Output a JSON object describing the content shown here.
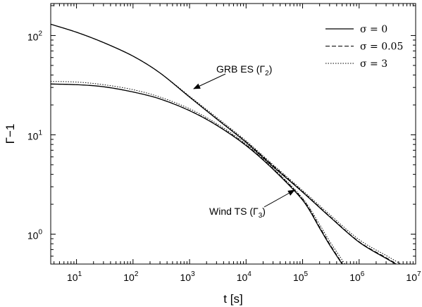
{
  "chart_data": {
    "type": "line",
    "xlabel": "t [s]",
    "ylabel": "Γ−1",
    "xscale": "log",
    "yscale": "log",
    "xlim": [
      3.5,
      10000000
    ],
    "ylim": [
      0.5,
      210
    ],
    "grid": false,
    "legend_position": "top-right",
    "x_tick_labels": [
      {
        "base": "10",
        "exp": "1",
        "value": 10
      },
      {
        "base": "10",
        "exp": "2",
        "value": 100
      },
      {
        "base": "10",
        "exp": "3",
        "value": 1000
      },
      {
        "base": "10",
        "exp": "4",
        "value": 10000
      },
      {
        "base": "10",
        "exp": "5",
        "value": 100000
      },
      {
        "base": "10",
        "exp": "6",
        "value": 1000000
      },
      {
        "base": "10",
        "exp": "7",
        "value": 10000000
      }
    ],
    "y_tick_labels": [
      {
        "base": "10",
        "exp": "0",
        "value": 1
      },
      {
        "base": "10",
        "exp": "1",
        "value": 10
      },
      {
        "base": "10",
        "exp": "2",
        "value": 100
      }
    ],
    "legend": [
      {
        "label": "σ = 0",
        "dash": "solid"
      },
      {
        "label": "σ = 0.05",
        "dash": "dashed"
      },
      {
        "label": "σ = 3",
        "dash": "dotted"
      }
    ],
    "annotations": [
      {
        "text": "GRB ES (Γ",
        "sub": "2",
        "close": ")",
        "points_to": {
          "x": 1000,
          "y": 23
        }
      },
      {
        "text": "Wind TS (Γ",
        "sub": "3",
        "close": ")",
        "points_to": {
          "x": 85000,
          "y": 2.8
        }
      }
    ],
    "series": [
      {
        "group": "GRB ES",
        "dash": "solid",
        "x": [
          3.5,
          10,
          30,
          100,
          300,
          1000,
          3000,
          10000,
          30000,
          100000,
          300000,
          1000000,
          3000000,
          4500000
        ],
        "y": [
          130,
          108,
          85,
          62,
          42,
          24,
          14.5,
          8.4,
          4.8,
          2.65,
          1.5,
          0.83,
          0.57,
          0.5
        ]
      },
      {
        "group": "GRB ES",
        "dash": "dashed",
        "x": [
          3.5,
          10,
          30,
          100,
          300,
          1000,
          3000,
          10000,
          30000,
          100000,
          300000,
          1000000,
          3000000,
          4600000
        ],
        "y": [
          130,
          108,
          85,
          62,
          42,
          24,
          14.6,
          8.5,
          4.9,
          2.68,
          1.52,
          0.84,
          0.58,
          0.5
        ]
      },
      {
        "group": "GRB ES",
        "dash": "dotted",
        "x": [
          3.5,
          10,
          30,
          100,
          300,
          1000,
          3000,
          10000,
          30000,
          100000,
          300000,
          1000000,
          3000000,
          5500000
        ],
        "y": [
          130,
          108,
          85,
          62,
          42,
          24.5,
          15,
          8.7,
          5.0,
          2.75,
          1.58,
          0.88,
          0.61,
          0.5
        ]
      },
      {
        "group": "Wind TS",
        "dash": "solid",
        "x": [
          3.5,
          10,
          30,
          100,
          300,
          1000,
          3000,
          10000,
          30000,
          100000,
          200000,
          300000,
          500000
        ],
        "y": [
          32.5,
          32,
          30.5,
          27,
          23,
          17.5,
          12.5,
          7.8,
          4.5,
          2.2,
          1.15,
          0.78,
          0.5
        ]
      },
      {
        "group": "Wind TS",
        "dash": "dashed",
        "x": [
          3.5,
          10,
          30,
          100,
          300,
          1000,
          3000,
          10000,
          30000,
          100000,
          200000,
          300000,
          510000
        ],
        "y": [
          32.5,
          32,
          30.5,
          27,
          23,
          17.6,
          12.6,
          7.9,
          4.55,
          2.25,
          1.18,
          0.8,
          0.5
        ]
      },
      {
        "group": "Wind TS",
        "dash": "dotted",
        "x": [
          3.5,
          10,
          30,
          100,
          300,
          1000,
          3000,
          10000,
          30000,
          100000,
          200000,
          300000,
          560000
        ],
        "y": [
          34.5,
          34,
          32,
          28.5,
          24,
          18.3,
          13,
          8.1,
          4.65,
          2.3,
          1.25,
          0.85,
          0.5
        ]
      }
    ]
  }
}
